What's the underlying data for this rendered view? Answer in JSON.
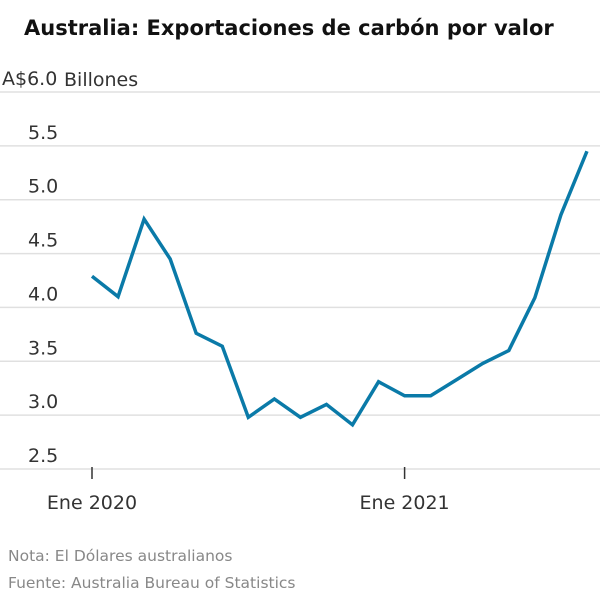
{
  "chart_data": {
    "type": "line",
    "title": "Australia: Exportaciones de carbón por valor",
    "unit_prefix": "A$",
    "ylabel": "Billones",
    "ylim": [
      2.5,
      6.0
    ],
    "yticks": [
      2.5,
      3.0,
      3.5,
      4.0,
      4.5,
      5.0,
      5.5,
      6.0
    ],
    "ytick_labels": [
      "2.5",
      "3.0",
      "3.5",
      "4.0",
      "4.5",
      "5.0",
      "5.5",
      "A$6.0"
    ],
    "xticks": [
      {
        "label": "Ene 2020",
        "x": "2020-01"
      },
      {
        "label": "Ene 2021",
        "x": "2021-01"
      }
    ],
    "grid": true,
    "series_color": "#0a7aa8",
    "x": [
      "2020-01",
      "2020-02",
      "2020-03",
      "2020-04",
      "2020-05",
      "2020-06",
      "2020-07",
      "2020-08",
      "2020-09",
      "2020-10",
      "2020-11",
      "2020-12",
      "2021-01",
      "2021-02",
      "2021-03",
      "2021-04",
      "2021-05",
      "2021-06",
      "2021-07",
      "2021-08"
    ],
    "values": [
      4.29,
      4.1,
      4.82,
      4.45,
      3.76,
      3.64,
      2.98,
      3.15,
      2.98,
      3.1,
      2.91,
      3.31,
      3.18,
      3.18,
      3.33,
      3.48,
      3.6,
      4.09,
      4.86,
      5.45
    ]
  },
  "footer": {
    "note": "Nota: El Dólares australianos",
    "source": "Fuente: Australia Bureau of Statistics"
  }
}
